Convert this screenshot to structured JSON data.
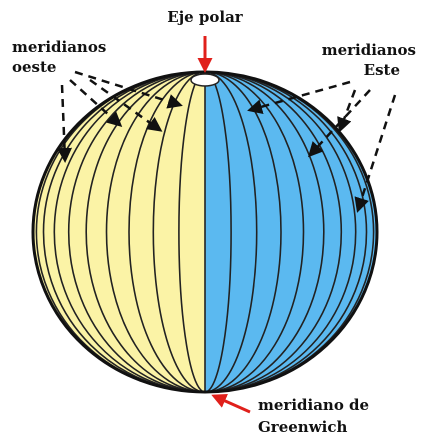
{
  "labels": {
    "polar_axis": "Eje polar",
    "west": [
      "meridianos",
      "oeste"
    ],
    "east": [
      "meridianos",
      "Este"
    ],
    "greenwich": [
      "meridiano de",
      "Greenwich"
    ]
  }
}
